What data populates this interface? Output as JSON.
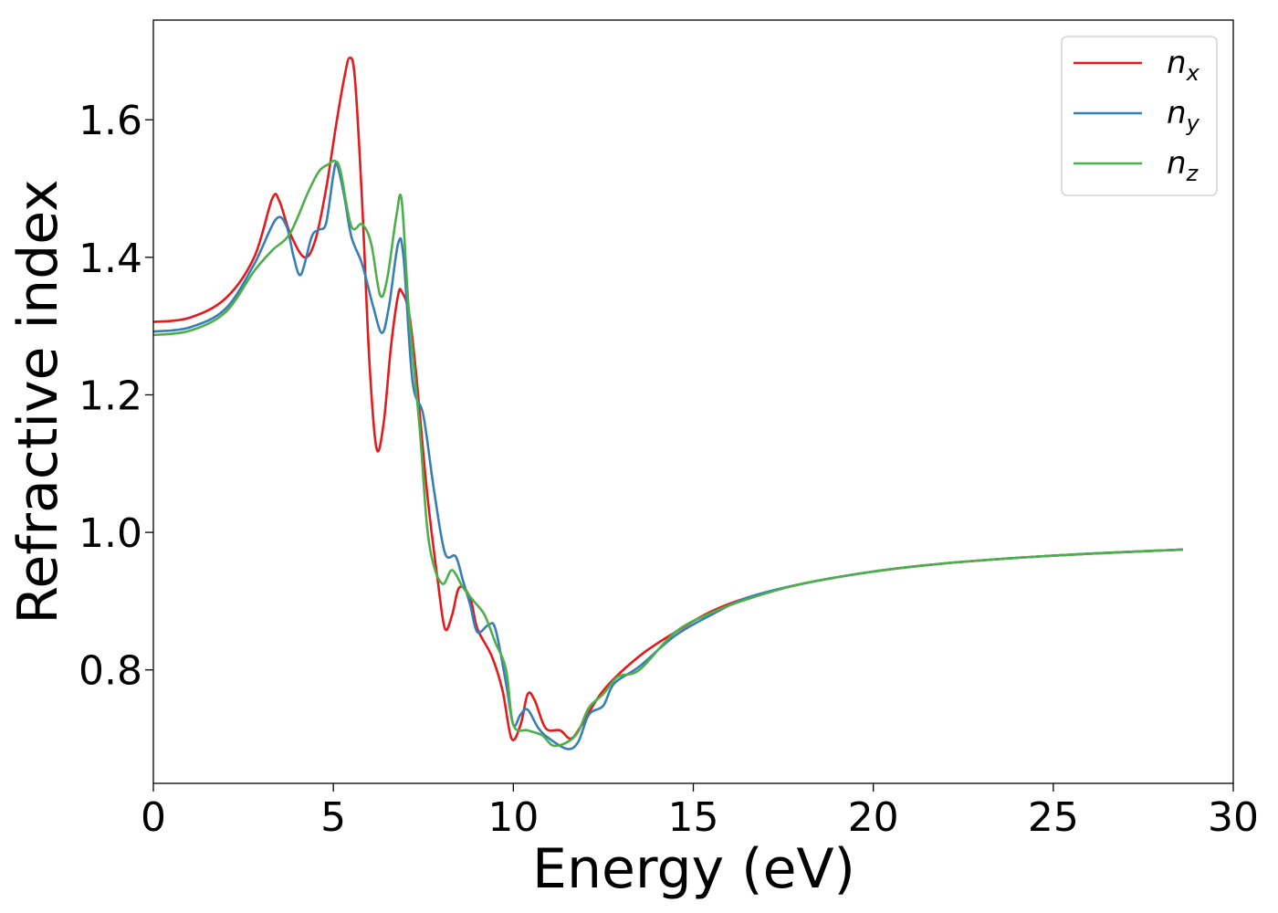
{
  "chart_data": {
    "type": "line",
    "xlabel": "Energy (eV)",
    "ylabel": "Refractive index",
    "xlim": [
      0,
      30
    ],
    "ylim": [
      0.635,
      1.745
    ],
    "xticks": [
      0,
      5,
      10,
      15,
      20,
      25,
      30
    ],
    "xtick_labels": [
      "0",
      "5",
      "10",
      "15",
      "20",
      "25",
      "30"
    ],
    "yticks": [
      0.8,
      1.0,
      1.2,
      1.4,
      1.6
    ],
    "ytick_labels": [
      "0.8",
      "1.0",
      "1.2",
      "1.4",
      "1.6"
    ],
    "grid": false,
    "legend": {
      "position": "top-right"
    },
    "series": [
      {
        "name": "n",
        "subscript": "x",
        "color": "#e41a1c",
        "points": [
          [
            0,
            1.306
          ],
          [
            1,
            1.312
          ],
          [
            2,
            1.34
          ],
          [
            2.8,
            1.4
          ],
          [
            3.3,
            1.485
          ],
          [
            3.5,
            1.482
          ],
          [
            3.8,
            1.435
          ],
          [
            4.2,
            1.4
          ],
          [
            4.5,
            1.425
          ],
          [
            4.8,
            1.5
          ],
          [
            5.1,
            1.6
          ],
          [
            5.3,
            1.66
          ],
          [
            5.45,
            1.69
          ],
          [
            5.6,
            1.66
          ],
          [
            5.8,
            1.48
          ],
          [
            6.0,
            1.25
          ],
          [
            6.2,
            1.122
          ],
          [
            6.4,
            1.16
          ],
          [
            6.6,
            1.27
          ],
          [
            6.8,
            1.345
          ],
          [
            6.9,
            1.35
          ],
          [
            7.1,
            1.32
          ],
          [
            7.3,
            1.23
          ],
          [
            7.6,
            1.06
          ],
          [
            7.9,
            0.93
          ],
          [
            8.1,
            0.86
          ],
          [
            8.3,
            0.88
          ],
          [
            8.5,
            0.92
          ],
          [
            8.8,
            0.905
          ],
          [
            9.0,
            0.86
          ],
          [
            9.4,
            0.82
          ],
          [
            9.7,
            0.77
          ],
          [
            9.95,
            0.7
          ],
          [
            10.2,
            0.72
          ],
          [
            10.4,
            0.765
          ],
          [
            10.6,
            0.755
          ],
          [
            10.9,
            0.715
          ],
          [
            11.3,
            0.712
          ],
          [
            11.6,
            0.7
          ],
          [
            11.9,
            0.72
          ],
          [
            12.5,
            0.77
          ],
          [
            13.5,
            0.82
          ],
          [
            14.5,
            0.855
          ],
          [
            15.5,
            0.885
          ],
          [
            16.5,
            0.905
          ],
          [
            18,
            0.925
          ],
          [
            20,
            0.943
          ],
          [
            22,
            0.955
          ],
          [
            24,
            0.963
          ],
          [
            26,
            0.969
          ],
          [
            28.6,
            0.975
          ]
        ]
      },
      {
        "name": "n",
        "subscript": "y",
        "color": "#377eb8",
        "points": [
          [
            0,
            1.292
          ],
          [
            1,
            1.298
          ],
          [
            2,
            1.325
          ],
          [
            2.8,
            1.39
          ],
          [
            3.4,
            1.455
          ],
          [
            3.7,
            1.445
          ],
          [
            3.9,
            1.4
          ],
          [
            4.1,
            1.375
          ],
          [
            4.4,
            1.43
          ],
          [
            4.6,
            1.44
          ],
          [
            4.8,
            1.45
          ],
          [
            5.0,
            1.52
          ],
          [
            5.1,
            1.535
          ],
          [
            5.3,
            1.49
          ],
          [
            5.5,
            1.43
          ],
          [
            5.8,
            1.39
          ],
          [
            6.1,
            1.33
          ],
          [
            6.35,
            1.29
          ],
          [
            6.55,
            1.33
          ],
          [
            6.8,
            1.42
          ],
          [
            6.95,
            1.4
          ],
          [
            7.2,
            1.22
          ],
          [
            7.5,
            1.17
          ],
          [
            7.8,
            1.06
          ],
          [
            8.1,
            0.97
          ],
          [
            8.4,
            0.965
          ],
          [
            8.6,
            0.93
          ],
          [
            8.8,
            0.895
          ],
          [
            9.0,
            0.855
          ],
          [
            9.3,
            0.865
          ],
          [
            9.5,
            0.86
          ],
          [
            9.8,
            0.78
          ],
          [
            10.0,
            0.72
          ],
          [
            10.2,
            0.735
          ],
          [
            10.4,
            0.742
          ],
          [
            10.7,
            0.715
          ],
          [
            11.0,
            0.7
          ],
          [
            11.5,
            0.685
          ],
          [
            11.8,
            0.695
          ],
          [
            12.1,
            0.735
          ],
          [
            12.5,
            0.748
          ],
          [
            12.8,
            0.78
          ],
          [
            13.5,
            0.805
          ],
          [
            14.5,
            0.85
          ],
          [
            15.5,
            0.88
          ],
          [
            16.5,
            0.905
          ],
          [
            18,
            0.925
          ],
          [
            20,
            0.943
          ],
          [
            22,
            0.955
          ],
          [
            24,
            0.963
          ],
          [
            26,
            0.969
          ],
          [
            28.6,
            0.975
          ]
        ]
      },
      {
        "name": "n",
        "subscript": "z",
        "color": "#4daf4a",
        "points": [
          [
            0,
            1.287
          ],
          [
            1,
            1.293
          ],
          [
            2,
            1.32
          ],
          [
            2.8,
            1.38
          ],
          [
            3.3,
            1.41
          ],
          [
            3.8,
            1.435
          ],
          [
            4.3,
            1.495
          ],
          [
            4.6,
            1.525
          ],
          [
            4.85,
            1.535
          ],
          [
            5.05,
            1.54
          ],
          [
            5.2,
            1.525
          ],
          [
            5.5,
            1.445
          ],
          [
            5.8,
            1.448
          ],
          [
            6.05,
            1.42
          ],
          [
            6.3,
            1.345
          ],
          [
            6.5,
            1.37
          ],
          [
            6.75,
            1.46
          ],
          [
            6.9,
            1.482
          ],
          [
            7.1,
            1.32
          ],
          [
            7.4,
            1.15
          ],
          [
            7.6,
            1.01
          ],
          [
            7.8,
            0.95
          ],
          [
            8.05,
            0.925
          ],
          [
            8.3,
            0.945
          ],
          [
            8.6,
            0.92
          ],
          [
            8.9,
            0.9
          ],
          [
            9.2,
            0.88
          ],
          [
            9.5,
            0.84
          ],
          [
            9.8,
            0.8
          ],
          [
            10.0,
            0.72
          ],
          [
            10.4,
            0.712
          ],
          [
            10.8,
            0.705
          ],
          [
            11.1,
            0.69
          ],
          [
            11.5,
            0.695
          ],
          [
            11.8,
            0.71
          ],
          [
            12.1,
            0.745
          ],
          [
            12.5,
            0.765
          ],
          [
            12.9,
            0.79
          ],
          [
            13.5,
            0.8
          ],
          [
            14.5,
            0.855
          ],
          [
            15.5,
            0.883
          ],
          [
            16.5,
            0.903
          ],
          [
            18,
            0.925
          ],
          [
            20,
            0.943
          ],
          [
            22,
            0.955
          ],
          [
            24,
            0.963
          ],
          [
            26,
            0.969
          ],
          [
            28.6,
            0.975
          ]
        ]
      }
    ]
  }
}
